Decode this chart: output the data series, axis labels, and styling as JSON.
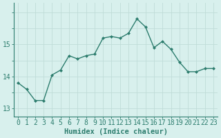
{
  "x": [
    0,
    1,
    2,
    3,
    4,
    5,
    6,
    7,
    8,
    9,
    10,
    11,
    12,
    13,
    14,
    15,
    16,
    17,
    18,
    19,
    20,
    21,
    22,
    23
  ],
  "y": [
    13.8,
    13.6,
    13.25,
    13.25,
    14.05,
    14.2,
    14.65,
    14.55,
    14.65,
    14.7,
    15.2,
    15.25,
    15.2,
    15.35,
    15.8,
    15.55,
    14.9,
    15.1,
    14.85,
    14.45,
    14.15,
    14.15,
    14.25,
    14.25
  ],
  "line_color": "#2d7d6e",
  "marker": "D",
  "marker_size": 2.0,
  "bg_color": "#d8f0ed",
  "grid_color": "#c0dcd8",
  "ylim": [
    12.75,
    16.3
  ],
  "yticks": [
    13,
    14,
    15
  ],
  "xlim": [
    -0.5,
    23.5
  ],
  "xlabel": "Humidex (Indice chaleur)",
  "xlabel_fontsize": 7.5,
  "tick_fontsize": 7
}
